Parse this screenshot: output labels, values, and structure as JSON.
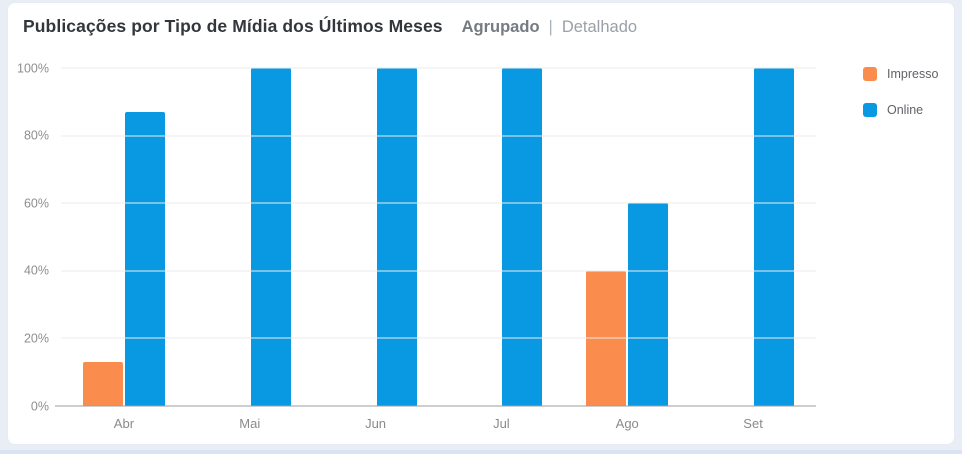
{
  "header": {
    "title": "Publicações por Tipo de Mídia dos Últimos Meses",
    "separator": "|",
    "view_options": [
      {
        "label": "Agrupado",
        "active": true
      },
      {
        "label": "Detalhado",
        "active": false
      }
    ]
  },
  "legend": {
    "position": "top-right",
    "items": [
      {
        "label": "Impresso",
        "color": "#fa8c4e"
      },
      {
        "label": "Online",
        "color": "#0999e2"
      }
    ]
  },
  "chart_data": {
    "type": "bar",
    "title": "Publicações por Tipo de Mídia dos Últimos Meses",
    "categories": [
      "Abr",
      "Mai",
      "Jun",
      "Jul",
      "Ago",
      "Set"
    ],
    "series": [
      {
        "name": "Impresso",
        "color": "#fa8c4e",
        "values": [
          13,
          0,
          0,
          0,
          40,
          0
        ]
      },
      {
        "name": "Online",
        "color": "#0999e2",
        "values": [
          87,
          100,
          100,
          100,
          60,
          100
        ]
      }
    ],
    "xlabel": "",
    "ylabel": "",
    "ylim": [
      0,
      100
    ],
    "y_ticks": [
      "0%",
      "20%",
      "40%",
      "60%",
      "80%",
      "100%"
    ],
    "grid": true,
    "bar_mode": "grouped",
    "legend_position": "right-top"
  },
  "colors": {
    "page_background": "#e9edf6",
    "card_background": "#ffffff",
    "gridline": "#ebebeb",
    "axis_line": "#9e9e9e",
    "tick_text": "#8e8e8e",
    "title_text": "#33373c"
  }
}
